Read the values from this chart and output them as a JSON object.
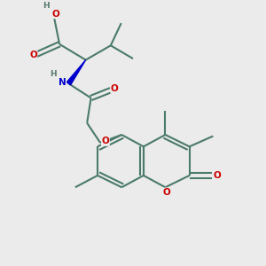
{
  "bg_color": "#ebebeb",
  "bond_color": "#4a7a6a",
  "bond_width": 1.5,
  "atom_colors": {
    "O": "#cc0000",
    "N": "#0000cc",
    "C": "#4a7a6a",
    "H": "#557a6a"
  },
  "figsize": [
    3.0,
    3.0
  ],
  "dpi": 100,
  "xlim": [
    0,
    10
  ],
  "ylim": [
    0,
    10
  ]
}
